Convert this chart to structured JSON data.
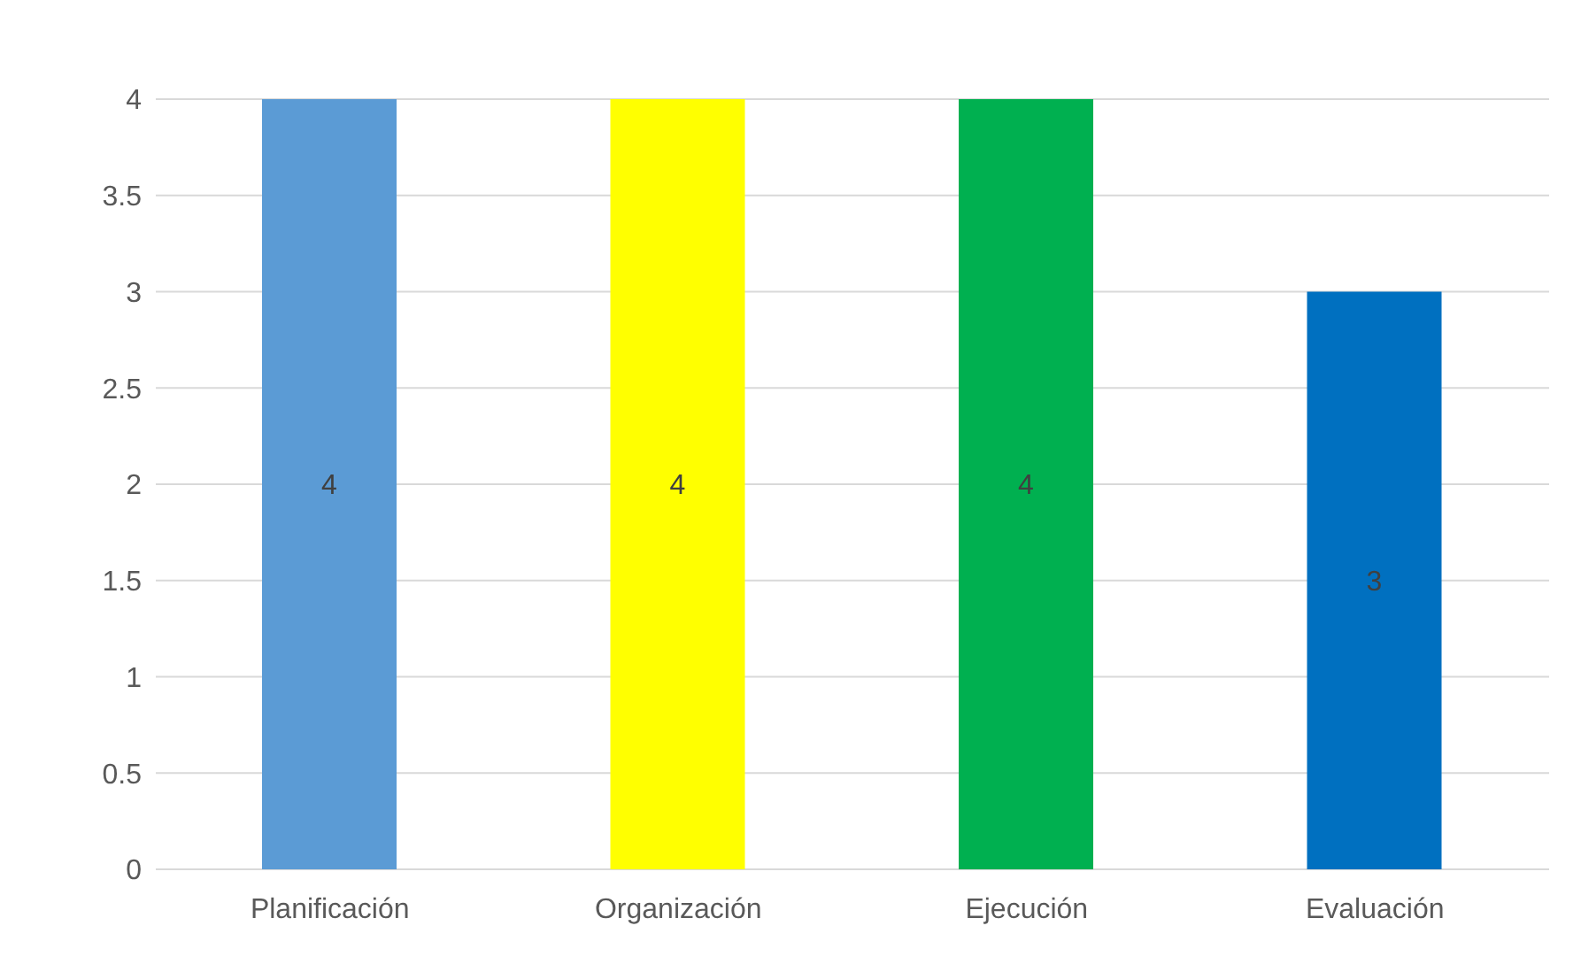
{
  "chart_data": {
    "type": "bar",
    "categories": [
      "Planificación",
      "Organización",
      "Ejecución",
      "Evaluación"
    ],
    "values": [
      4,
      4,
      4,
      3
    ],
    "colors": [
      "#5b9bd5",
      "#ffff00",
      "#00b050",
      "#0070c0"
    ],
    "ylim": [
      0,
      4
    ],
    "yticks": [
      0,
      0.5,
      1,
      1.5,
      2,
      2.5,
      3,
      3.5,
      4
    ],
    "grid": "y",
    "data_labels": true
  }
}
